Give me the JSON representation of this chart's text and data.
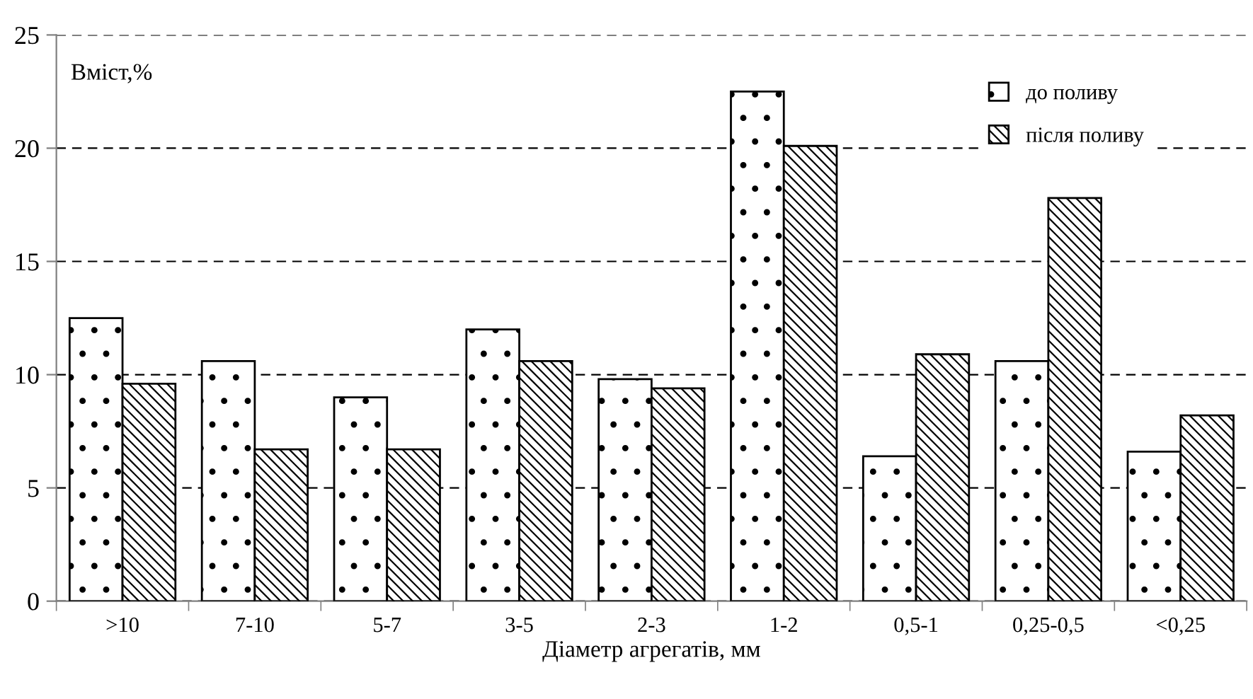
{
  "chart_data": {
    "type": "bar",
    "ylabel": "Вміст,%",
    "xlabel": "Діаметр агрегатів, мм",
    "categories": [
      ">10",
      "7-10",
      "5-7",
      "3-5",
      "2-3",
      "1-2",
      "0,5-1",
      "0,25-0,5",
      "<0,25"
    ],
    "series": [
      {
        "name": "до поливу",
        "color": "#000000",
        "values": [
          12.5,
          10.6,
          9.0,
          12.0,
          9.8,
          22.5,
          6.4,
          10.6,
          6.6
        ]
      },
      {
        "name": "після поливу",
        "color": "#000000",
        "values": [
          9.6,
          6.7,
          6.7,
          10.6,
          9.4,
          20.1,
          10.9,
          17.8,
          8.2
        ]
      }
    ],
    "ylim": [
      0,
      25
    ],
    "yticks": [
      0,
      5,
      10,
      15,
      20,
      25
    ],
    "grid": "y",
    "legend": "top right"
  }
}
